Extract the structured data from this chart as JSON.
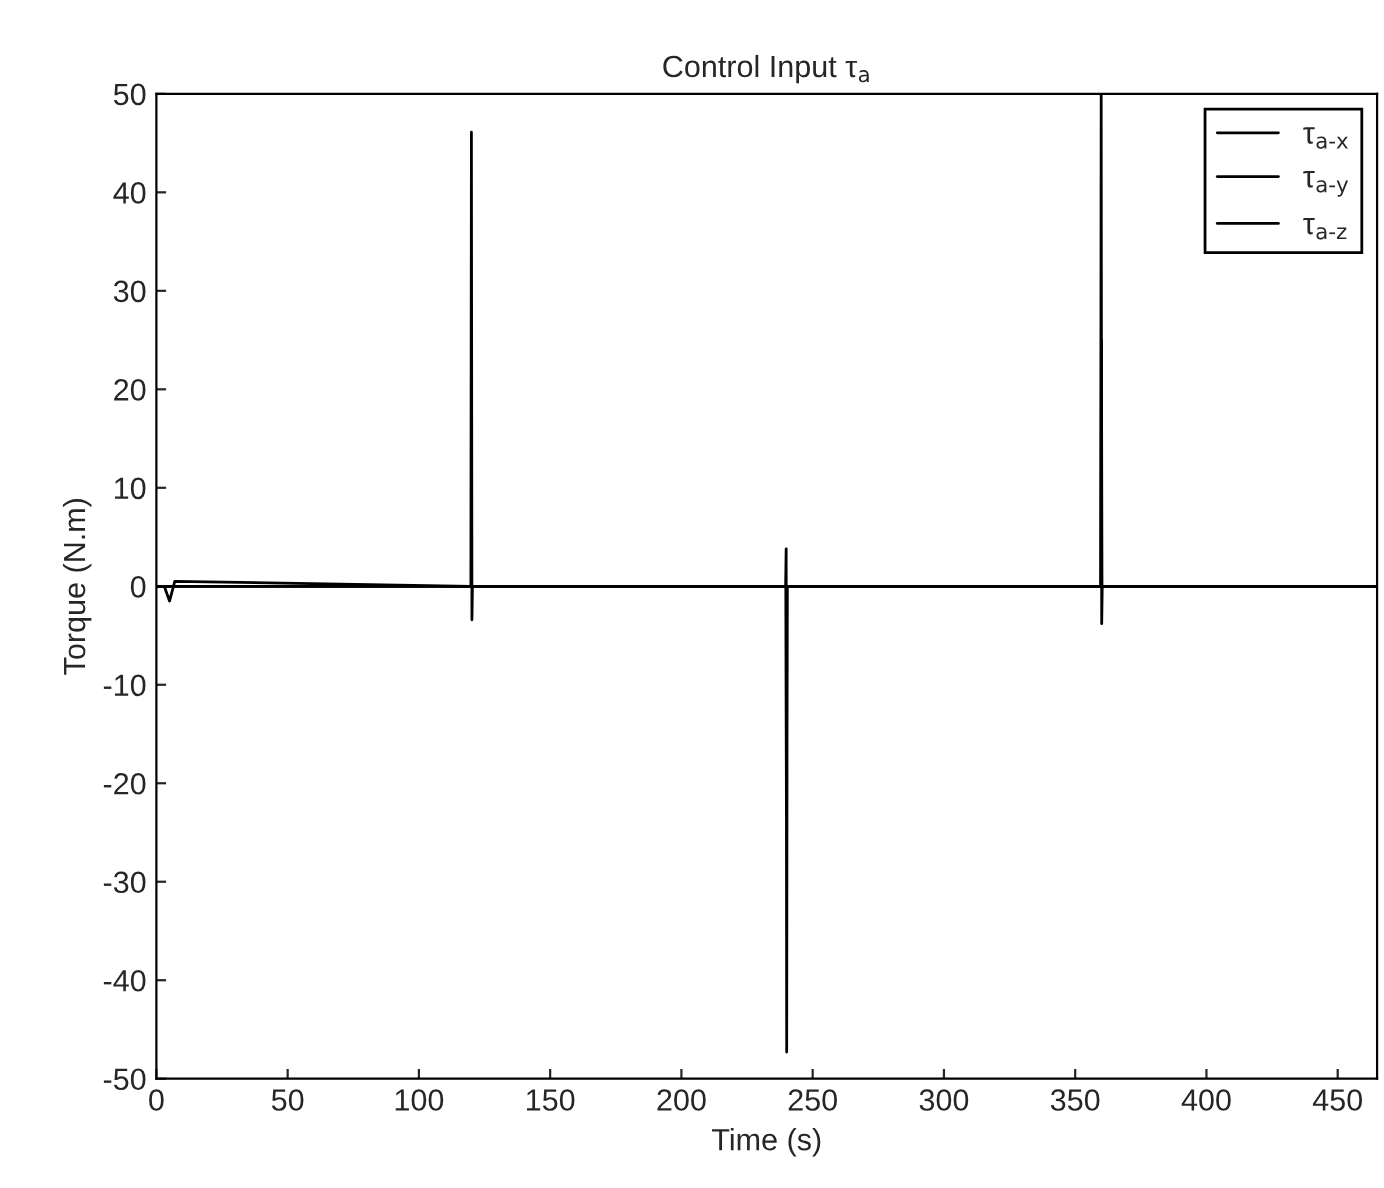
{
  "chart_data": {
    "type": "line",
    "title": "Control Input τ$_{a}$",
    "xlabel": "Time (s)",
    "ylabel": "Torque (N.m)",
    "series": [
      {
        "name": "τ$_{a-x}$",
        "color": "#000000",
        "x": [
          0,
          3,
          5,
          7,
          119.8,
          120,
          120.2,
          120.4,
          465
        ],
        "values": [
          0,
          0,
          -1.5,
          0.5,
          0,
          46.1,
          -3.4,
          0,
          0
        ]
      },
      {
        "name": "τ$_{a-y}$",
        "color": "#000000",
        "x": [
          0,
          239.8,
          240,
          240.2,
          359.8,
          360,
          360.2,
          465
        ],
        "values": [
          0,
          0,
          -23.3,
          0,
          0,
          25,
          0,
          0
        ]
      },
      {
        "name": "τ$_{a-z}$",
        "color": "#000000",
        "x": [
          0,
          239.7,
          239.9,
          240.1,
          240.3,
          359.7,
          359.9,
          360.1,
          360.3,
          465
        ],
        "values": [
          0,
          0,
          3.8,
          -47.3,
          0,
          0,
          50,
          -3.8,
          0,
          0
        ]
      }
    ],
    "xlim": [
      0,
      465
    ],
    "ylim": [
      -50,
      50
    ],
    "xticks": [
      0,
      50,
      100,
      150,
      200,
      250,
      300,
      350,
      400,
      450
    ],
    "yticks": [
      -50,
      -40,
      -30,
      -20,
      -10,
      0,
      10,
      20,
      30,
      40,
      50
    ],
    "grid": false,
    "legend": "top right",
    "marker": "none",
    "line_style": "solid"
  }
}
